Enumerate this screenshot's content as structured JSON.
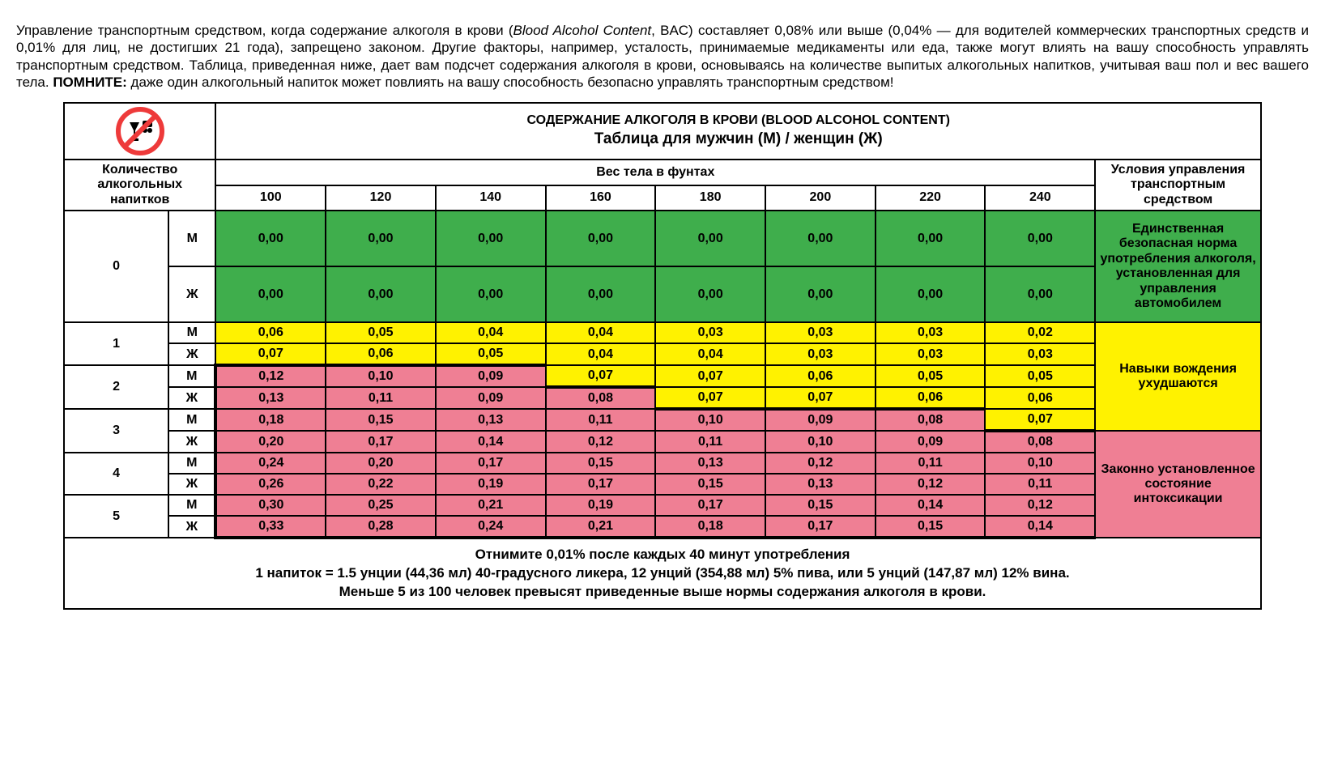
{
  "intro": {
    "line1a": "Управление транспортным средством, когда содержание алкоголя в крови (",
    "line1b_italic": "Blood Alcohol Content",
    "line1c": ", BAC) составляет 0,08% или выше (0,04% — для водителей коммерческих транспортных средств и 0,01% для лиц, не достигших 21 года), запрещено законом. Другие факторы, например, усталость, принимаемые медикаменты или еда, также могут влиять на вашу способность управлять транспортным средством. Таблица, приведенная ниже, дает вам подсчет содержания алкоголя в крови, основываясь на количестве выпитых алкогольных напитков, учитывая ваш пол и вес вашего тела. ",
    "line1d_bold": "ПОМНИТЕ:",
    "line1e": " даже один алкогольный напиток может повлиять на вашу способность безопасно управлять транспортным средством!"
  },
  "title": {
    "main": "СОДЕРЖАНИЕ АЛКОГОЛЯ В КРОВИ (BLOOD ALCOHOL CONTENT)",
    "sub": "Таблица для мужчин (М) / женщин (Ж)"
  },
  "headers": {
    "qty": "Количество алкогольных напитков",
    "weight_super": "Вес тела в фунтах",
    "cond": "Условия управления транспортным средством"
  },
  "weights": [
    "100",
    "120",
    "140",
    "160",
    "180",
    "200",
    "220",
    "240"
  ],
  "genders": {
    "m": "М",
    "f": "Ж"
  },
  "qty_labels": [
    "0",
    "1",
    "2",
    "3",
    "4",
    "5"
  ],
  "colors": {
    "green": "#3fae4c",
    "yellow": "#fff200",
    "pink": "#ef7f94",
    "background": "#ffffff",
    "border": "#000000",
    "text": "#000000"
  },
  "conditions": {
    "safe": "Единственная безопасная норма употребления алкоголя, установленная для управления автомобилем",
    "impaired": "Навыки вождения ухудшаются",
    "illegal": "Законно установленное состояние интоксикации"
  },
  "rows": [
    {
      "qty": "0",
      "m": [
        "0,00",
        "0,00",
        "0,00",
        "0,00",
        "0,00",
        "0,00",
        "0,00",
        "0,00"
      ],
      "f": [
        "0,00",
        "0,00",
        "0,00",
        "0,00",
        "0,00",
        "0,00",
        "0,00",
        "0,00"
      ],
      "mc": [
        "g",
        "g",
        "g",
        "g",
        "g",
        "g",
        "g",
        "g"
      ],
      "fc": [
        "g",
        "g",
        "g",
        "g",
        "g",
        "g",
        "g",
        "g"
      ]
    },
    {
      "qty": "1",
      "m": [
        "0,06",
        "0,05",
        "0,04",
        "0,04",
        "0,03",
        "0,03",
        "0,03",
        "0,02"
      ],
      "f": [
        "0,07",
        "0,06",
        "0,05",
        "0,04",
        "0,04",
        "0,03",
        "0,03",
        "0,03"
      ],
      "mc": [
        "y",
        "y",
        "y",
        "y",
        "y",
        "y",
        "y",
        "y"
      ],
      "fc": [
        "y",
        "y",
        "y",
        "y",
        "y",
        "y",
        "y",
        "y"
      ]
    },
    {
      "qty": "2",
      "m": [
        "0,12",
        "0,10",
        "0,09",
        "0,07",
        "0,07",
        "0,06",
        "0,05",
        "0,05"
      ],
      "f": [
        "0,13",
        "0,11",
        "0,09",
        "0,08",
        "0,07",
        "0,07",
        "0,06",
        "0,06"
      ],
      "mc": [
        "p",
        "p",
        "p",
        "y",
        "y",
        "y",
        "y",
        "y"
      ],
      "fc": [
        "p",
        "p",
        "p",
        "p",
        "y",
        "y",
        "y",
        "y"
      ]
    },
    {
      "qty": "3",
      "m": [
        "0,18",
        "0,15",
        "0,13",
        "0,11",
        "0,10",
        "0,09",
        "0,08",
        "0,07"
      ],
      "f": [
        "0,20",
        "0,17",
        "0,14",
        "0,12",
        "0,11",
        "0,10",
        "0,09",
        "0,08"
      ],
      "mc": [
        "p",
        "p",
        "p",
        "p",
        "p",
        "p",
        "p",
        "y"
      ],
      "fc": [
        "p",
        "p",
        "p",
        "p",
        "p",
        "p",
        "p",
        "p"
      ]
    },
    {
      "qty": "4",
      "m": [
        "0,24",
        "0,20",
        "0,17",
        "0,15",
        "0,13",
        "0,12",
        "0,11",
        "0,10"
      ],
      "f": [
        "0,26",
        "0,22",
        "0,19",
        "0,17",
        "0,15",
        "0,13",
        "0,12",
        "0,11"
      ],
      "mc": [
        "p",
        "p",
        "p",
        "p",
        "p",
        "p",
        "p",
        "p"
      ],
      "fc": [
        "p",
        "p",
        "p",
        "p",
        "p",
        "p",
        "p",
        "p"
      ]
    },
    {
      "qty": "5",
      "m": [
        "0,30",
        "0,25",
        "0,21",
        "0,19",
        "0,17",
        "0,15",
        "0,14",
        "0,12"
      ],
      "f": [
        "0,33",
        "0,28",
        "0,24",
        "0,21",
        "0,18",
        "0,17",
        "0,15",
        "0,14"
      ],
      "mc": [
        "p",
        "p",
        "p",
        "p",
        "p",
        "p",
        "p",
        "p"
      ],
      "fc": [
        "p",
        "p",
        "p",
        "p",
        "p",
        "p",
        "p",
        "p"
      ]
    }
  ],
  "footnotes": {
    "a": "Отнимите 0,01% после каждых 40 минут употребления",
    "b": "1 напиток = 1.5 унции (44,36 мл) 40-градусного ликера, 12 унций (354,88 мл) 5% пива, или 5 унций (147,87 мл) 12% вина.",
    "c": "Меньше 5 из 100 человек превысят приведенные выше нормы содержания алкоголя в крови."
  },
  "icon": {
    "name": "no-alcohol-driving-icon",
    "ring_color": "#ee3a3a"
  }
}
